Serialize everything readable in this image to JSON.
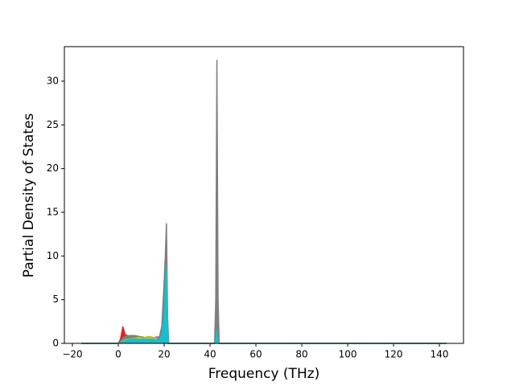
{
  "chart_data": {
    "type": "line",
    "xlabel": "Frequency (THz)",
    "ylabel": "Partial Density of States",
    "x": [
      -16,
      0,
      1,
      2,
      3,
      5,
      7,
      9,
      11,
      13,
      15,
      17,
      18,
      19,
      20,
      20.5,
      21,
      21.5,
      22,
      42,
      42.5,
      43,
      43.5,
      44,
      143
    ],
    "series": [
      {
        "color": "#1f77b4",
        "values": [
          0,
          0,
          0.2,
          0.5,
          0.6,
          0.7,
          0.8,
          0.7,
          0.5,
          0.3,
          0.3,
          0.4,
          0.5,
          0.8,
          1.2,
          0.6,
          0.3,
          0,
          0,
          0,
          0.5,
          2.6,
          0.5,
          0,
          0
        ]
      },
      {
        "color": "#ff7f0e",
        "values": [
          0,
          0,
          0.1,
          0.3,
          0.5,
          0.6,
          0.5,
          0.6,
          0.7,
          0.5,
          0.4,
          0.3,
          0.5,
          1.0,
          2.0,
          1.0,
          0.5,
          0,
          0,
          0,
          0.2,
          0.6,
          0.2,
          0,
          0
        ]
      },
      {
        "color": "#2ca02c",
        "values": [
          0,
          0,
          0.1,
          0.2,
          0.3,
          0.5,
          0.5,
          0.4,
          0.5,
          0.4,
          0.3,
          0.2,
          0.3,
          0.6,
          1.0,
          0.5,
          0.2,
          0,
          0,
          0,
          0.2,
          0.9,
          0.2,
          0,
          0
        ]
      },
      {
        "color": "#d62728",
        "values": [
          0,
          0,
          0.5,
          1.9,
          1.0,
          0.8,
          0.6,
          0.5,
          0.4,
          0.3,
          0.2,
          0.2,
          0.4,
          1.5,
          6.5,
          2.0,
          0.5,
          0,
          0,
          0,
          0.2,
          1.0,
          0.2,
          0,
          0
        ]
      },
      {
        "color": "#9467bd",
        "values": [
          0,
          0,
          0.1,
          0.3,
          0.4,
          0.4,
          0.5,
          0.4,
          0.3,
          0.3,
          0.2,
          0.2,
          0.3,
          0.5,
          0.8,
          0.4,
          0.2,
          0,
          0,
          0,
          0.3,
          1.2,
          0.3,
          0,
          0
        ]
      },
      {
        "color": "#8c564b",
        "values": [
          0,
          0,
          0.1,
          0.2,
          0.3,
          0.3,
          0.4,
          0.3,
          0.3,
          0.2,
          0.2,
          0.1,
          0.2,
          0.4,
          0.6,
          0.3,
          0.2,
          0,
          0,
          0,
          0.1,
          0.5,
          0.1,
          0,
          0
        ]
      },
      {
        "color": "#e377c2",
        "values": [
          0,
          0,
          0.1,
          0.2,
          0.3,
          0.4,
          0.4,
          0.5,
          0.4,
          0.5,
          0.6,
          0.8,
          0.7,
          0.9,
          1.5,
          1.0,
          0.5,
          0,
          0,
          0,
          1.0,
          4.9,
          1.0,
          0,
          0
        ]
      },
      {
        "color": "#7f7f7f",
        "values": [
          0,
          0,
          0.2,
          0.6,
          0.8,
          0.9,
          0.9,
          0.8,
          0.7,
          0.6,
          0.6,
          0.5,
          0.8,
          2.0,
          7.0,
          10.0,
          13.7,
          3.0,
          0,
          0,
          5.0,
          32.4,
          5.0,
          0,
          0
        ]
      },
      {
        "color": "#bcbd22",
        "values": [
          0,
          0,
          0.1,
          0.3,
          0.4,
          0.5,
          0.6,
          0.7,
          0.6,
          0.8,
          0.7,
          0.4,
          0.4,
          0.6,
          1.0,
          0.5,
          0.2,
          0,
          0,
          0,
          0.2,
          0.8,
          0.2,
          0,
          0
        ]
      },
      {
        "color": "#17becf",
        "values": [
          0,
          0,
          0.1,
          0.2,
          0.3,
          0.4,
          0.5,
          0.4,
          0.5,
          0.4,
          0.5,
          0.3,
          0.5,
          1.0,
          3.0,
          6.0,
          8.8,
          2.0,
          0,
          0,
          0.3,
          1.5,
          0.3,
          0,
          0
        ]
      }
    ],
    "xlim": [
      -23.5,
      150.5
    ],
    "xticks": [
      {
        "value": -20,
        "label": "−20"
      },
      0,
      20,
      40,
      60,
      80,
      100,
      120,
      140
    ],
    "ylim": [
      0,
      33.95
    ],
    "yticks": [
      0,
      5,
      10,
      15,
      20,
      25,
      30
    ]
  }
}
